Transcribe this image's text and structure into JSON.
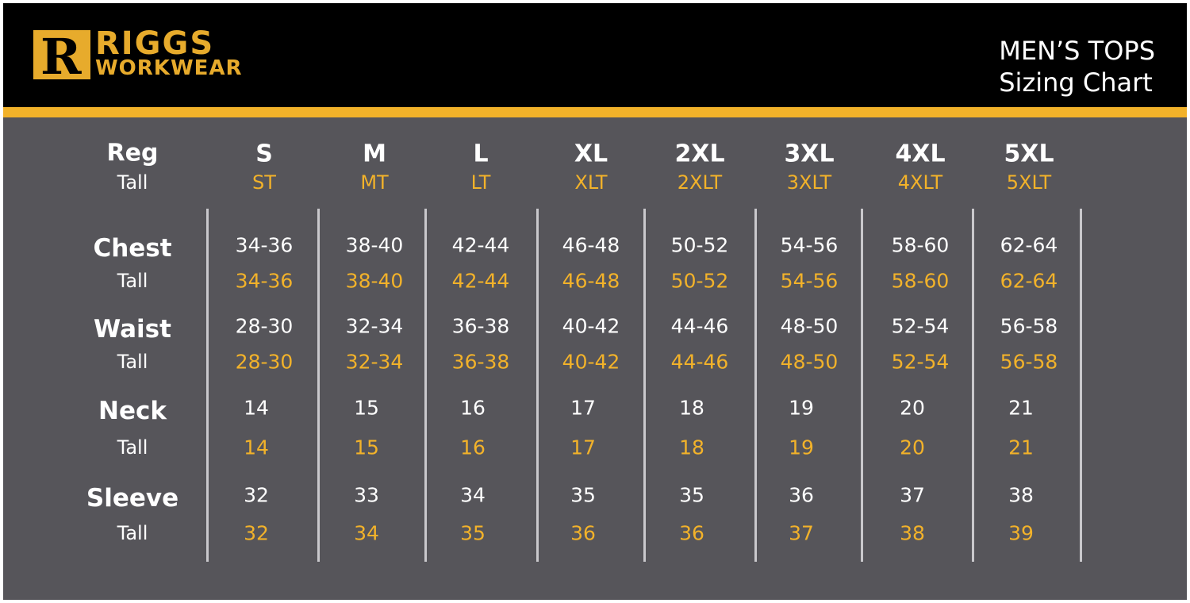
{
  "brand": {
    "logo_text_1": "RIGGS",
    "logo_text_2": "WORKWEAR",
    "colors": {
      "accent": "#f2b22a",
      "background": "#56555a",
      "header": "#000000"
    }
  },
  "title": {
    "line1": "MEN’S TOPS",
    "line2": "Sizing Chart"
  },
  "chart_data": {
    "type": "table",
    "header": {
      "reg_label": "Reg",
      "tall_label": "Tall"
    },
    "sizes": [
      "S",
      "M",
      "L",
      "XL",
      "2XL",
      "3XL",
      "4XL",
      "5XL"
    ],
    "tall_sizes": [
      "ST",
      "MT",
      "LT",
      "XLT",
      "2XLT",
      "3XLT",
      "4XLT",
      "5XLT"
    ],
    "rows": [
      {
        "label": "Chest",
        "tall_label": "Tall",
        "regular": [
          "34-36",
          "38-40",
          "42-44",
          "46-48",
          "50-52",
          "54-56",
          "58-60",
          "62-64"
        ],
        "tall": [
          "34-36",
          "38-40",
          "42-44",
          "46-48",
          "50-52",
          "54-56",
          "58-60",
          "62-64"
        ]
      },
      {
        "label": "Waist",
        "tall_label": "Tall",
        "regular": [
          "28-30",
          "32-34",
          "36-38",
          "40-42",
          "44-46",
          "48-50",
          "52-54",
          "56-58"
        ],
        "tall": [
          "28-30",
          "32-34",
          "36-38",
          "40-42",
          "44-46",
          "48-50",
          "52-54",
          "56-58"
        ]
      },
      {
        "label": "Neck",
        "tall_label": "Tall",
        "regular": [
          "14",
          "15",
          "16",
          "17",
          "18",
          "19",
          "20",
          "21"
        ],
        "tall": [
          "14",
          "15",
          "16",
          "17",
          "18",
          "19",
          "20",
          "21"
        ]
      },
      {
        "label": "Sleeve",
        "tall_label": "Tall",
        "regular": [
          "32",
          "33",
          "34",
          "35",
          "35",
          "36",
          "37",
          "38"
        ],
        "tall": [
          "32",
          "34",
          "35",
          "36",
          "36",
          "37",
          "38",
          "39"
        ]
      }
    ]
  }
}
